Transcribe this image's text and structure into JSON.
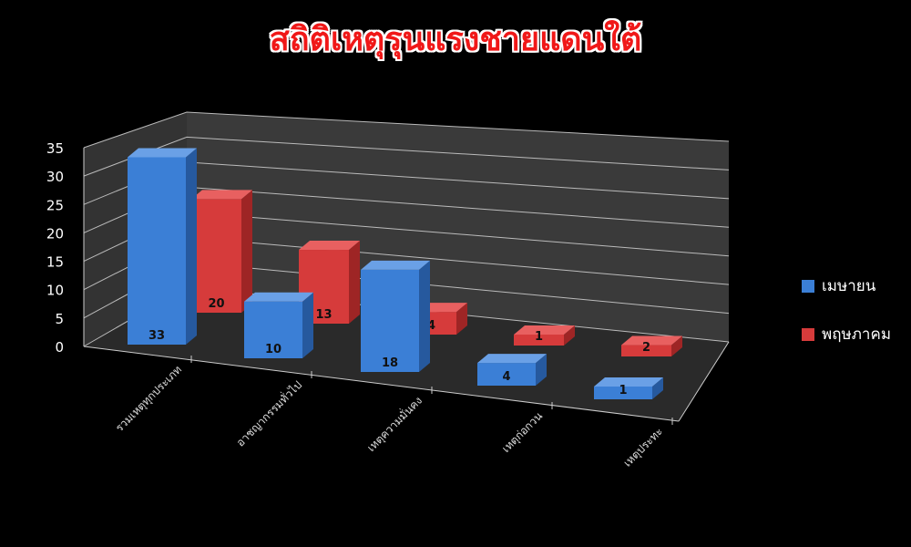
{
  "chart_data": {
    "type": "bar",
    "title": "สถิติเหตุรุนแรงชายแดนใต้",
    "categories": [
      "รวมเหตุทุกประเภท",
      "อาชญากรรมทั่วไป",
      "เหตุความมั่นคง",
      "เหตุก่อกวน",
      "เหตุประทะ"
    ],
    "series": [
      {
        "name": "เมษายน",
        "color": "#3b7fd6",
        "values": [
          33,
          10,
          18,
          4,
          1
        ]
      },
      {
        "name": "พฤษภาคม",
        "color": "#d63b3b",
        "values": [
          20,
          13,
          4,
          1,
          2
        ]
      }
    ],
    "ylim": [
      0,
      35
    ],
    "yticks": [
      "0",
      "5",
      "10",
      "15",
      "20",
      "25",
      "30",
      "35"
    ],
    "grid": true,
    "legend": "right",
    "style": "3d-column"
  }
}
